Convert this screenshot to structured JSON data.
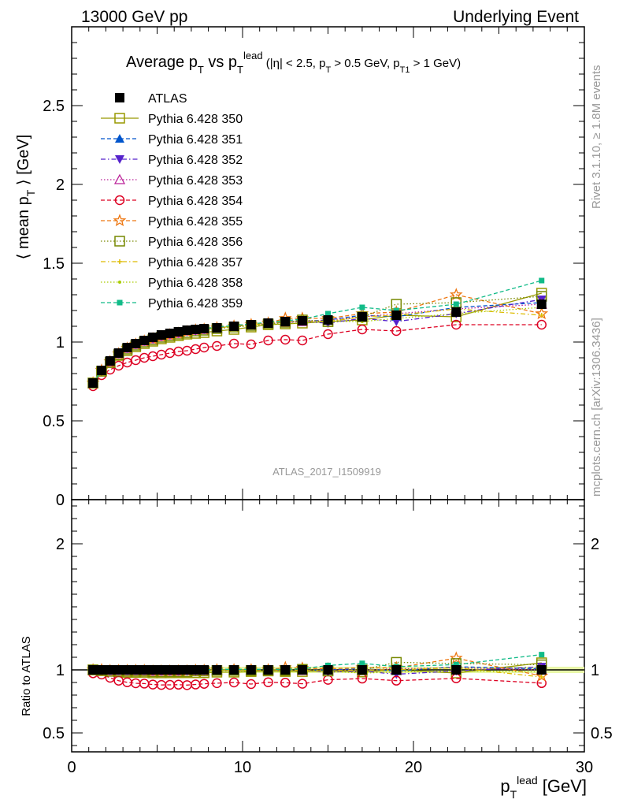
{
  "header": {
    "left": "13000 GeV pp",
    "right": "Underlying Event"
  },
  "side_labels": {
    "top": "Rivet 3.1.10, ≥ 1.8M events",
    "bottom": "mcplots.cern.ch [arXiv:1306.3436]"
  },
  "watermark": "ATLAS_2017_I1509919",
  "chart_data": {
    "type": "scatter",
    "title": "Average p_T vs p_T^lead (|η| < 2.5, p_T > 0.5 GeV, p_T1 > 1 GeV)",
    "xlabel": "p_T^lead [GeV]",
    "ylabel": "⟨ mean p_T ⟩ [GeV]",
    "ratio_ylabel": "Ratio to ATLAS",
    "xlim": [
      0,
      30
    ],
    "ylim": [
      0,
      3.0
    ],
    "ratio_ylim": [
      0.35,
      2.35
    ],
    "x_ticks": [
      "0",
      "10",
      "20",
      "30"
    ],
    "y_ticks": [
      "0",
      "0.5",
      "1",
      "1.5",
      "2",
      "2.5"
    ],
    "ratio_ticks": [
      "0.5",
      "1",
      "2"
    ],
    "legend_position": "top-left",
    "x": [
      1.25,
      1.75,
      2.25,
      2.75,
      3.25,
      3.75,
      4.25,
      4.75,
      5.25,
      5.75,
      6.25,
      6.75,
      7.25,
      7.75,
      8.5,
      9.5,
      10.5,
      11.5,
      12.5,
      13.5,
      15.0,
      17.0,
      19.0,
      22.5,
      27.5
    ],
    "series": [
      {
        "name": "ATLAS",
        "values": [
          0.74,
          0.82,
          0.88,
          0.93,
          0.965,
          0.99,
          1.01,
          1.03,
          1.045,
          1.055,
          1.065,
          1.075,
          1.08,
          1.085,
          1.09,
          1.1,
          1.11,
          1.12,
          1.13,
          1.135,
          1.14,
          1.16,
          1.17,
          1.19,
          1.24
        ],
        "color": "#000000",
        "marker": "filled-square",
        "dash": "none"
      },
      {
        "name": "Pythia 6.428 350",
        "values": [
          0.74,
          0.815,
          0.87,
          0.915,
          0.945,
          0.97,
          0.99,
          1.005,
          1.02,
          1.03,
          1.04,
          1.05,
          1.055,
          1.06,
          1.07,
          1.08,
          1.095,
          1.11,
          1.115,
          1.12,
          1.13,
          1.14,
          1.17,
          1.16,
          1.31
        ],
        "color": "#999900",
        "marker": "open-square",
        "dash": "solid"
      },
      {
        "name": "Pythia 6.428 351",
        "values": [
          0.74,
          0.82,
          0.875,
          0.925,
          0.96,
          0.985,
          1.005,
          1.02,
          1.035,
          1.05,
          1.06,
          1.07,
          1.075,
          1.08,
          1.09,
          1.1,
          1.11,
          1.12,
          1.13,
          1.13,
          1.14,
          1.17,
          1.16,
          1.22,
          1.25
        ],
        "color": "#0055cc",
        "marker": "filled-triangle-up",
        "dash": "dashed"
      },
      {
        "name": "Pythia 6.428 352",
        "values": [
          0.74,
          0.82,
          0.875,
          0.925,
          0.96,
          0.985,
          1.005,
          1.02,
          1.035,
          1.045,
          1.055,
          1.065,
          1.07,
          1.08,
          1.09,
          1.1,
          1.11,
          1.12,
          1.125,
          1.13,
          1.12,
          1.15,
          1.13,
          1.18,
          1.27
        ],
        "color": "#5522cc",
        "marker": "filled-triangle-down",
        "dash": "dashdot"
      },
      {
        "name": "Pythia 6.428 353",
        "values": [
          0.74,
          0.82,
          0.875,
          0.925,
          0.96,
          0.985,
          1.005,
          1.02,
          1.035,
          1.045,
          1.055,
          1.07,
          1.075,
          1.08,
          1.09,
          1.1,
          1.11,
          1.12,
          1.125,
          1.13,
          1.14,
          1.16,
          1.18,
          1.21,
          1.24
        ],
        "color": "#bb2299",
        "marker": "open-triangle-up",
        "dash": "dotted"
      },
      {
        "name": "Pythia 6.428 354",
        "values": [
          0.72,
          0.79,
          0.825,
          0.85,
          0.87,
          0.885,
          0.9,
          0.91,
          0.92,
          0.93,
          0.94,
          0.945,
          0.955,
          0.965,
          0.975,
          0.99,
          0.985,
          1.01,
          1.015,
          1.01,
          1.05,
          1.08,
          1.07,
          1.11,
          1.11
        ],
        "color": "#dd0022",
        "marker": "open-circle",
        "dash": "dashed"
      },
      {
        "name": "Pythia 6.428 355",
        "values": [
          0.74,
          0.82,
          0.875,
          0.925,
          0.96,
          0.985,
          1.005,
          1.02,
          1.035,
          1.045,
          1.055,
          1.065,
          1.075,
          1.08,
          1.09,
          1.1,
          1.11,
          1.12,
          1.15,
          1.15,
          1.15,
          1.18,
          1.19,
          1.3,
          1.18
        ],
        "color": "#ee7711",
        "marker": "open-star",
        "dash": "dashed"
      },
      {
        "name": "Pythia 6.428 356",
        "values": [
          0.74,
          0.815,
          0.87,
          0.92,
          0.955,
          0.98,
          1.0,
          1.015,
          1.03,
          1.04,
          1.05,
          1.06,
          1.07,
          1.075,
          1.085,
          1.095,
          1.105,
          1.115,
          1.125,
          1.14,
          1.13,
          1.16,
          1.24,
          1.25,
          1.29
        ],
        "color": "#778800",
        "marker": "open-square",
        "dash": "dotted"
      },
      {
        "name": "Pythia 6.428 357",
        "values": [
          0.74,
          0.82,
          0.875,
          0.925,
          0.96,
          0.985,
          1.005,
          1.02,
          1.035,
          1.045,
          1.055,
          1.065,
          1.075,
          1.08,
          1.09,
          1.1,
          1.11,
          1.12,
          1.13,
          1.13,
          1.13,
          1.16,
          1.17,
          1.21,
          1.17
        ],
        "color": "#ddbb00",
        "marker": "small-cross",
        "dash": "dashdot"
      },
      {
        "name": "Pythia 6.428 358",
        "values": [
          0.74,
          0.82,
          0.875,
          0.925,
          0.96,
          0.985,
          1.005,
          1.02,
          1.035,
          1.045,
          1.055,
          1.065,
          1.07,
          1.08,
          1.09,
          1.1,
          1.1,
          1.11,
          1.12,
          1.12,
          1.13,
          1.13,
          1.15,
          1.18,
          1.22
        ],
        "color": "#aacc00",
        "marker": "small-dot",
        "dash": "dotted"
      },
      {
        "name": "Pythia 6.428 359",
        "values": [
          0.74,
          0.82,
          0.875,
          0.925,
          0.96,
          0.985,
          1.005,
          1.02,
          1.035,
          1.05,
          1.06,
          1.07,
          1.075,
          1.085,
          1.095,
          1.105,
          1.115,
          1.125,
          1.135,
          1.145,
          1.18,
          1.22,
          1.2,
          1.24,
          1.39
        ],
        "color": "#11bb88",
        "marker": "filled-square-small",
        "dash": "dashed"
      }
    ]
  }
}
